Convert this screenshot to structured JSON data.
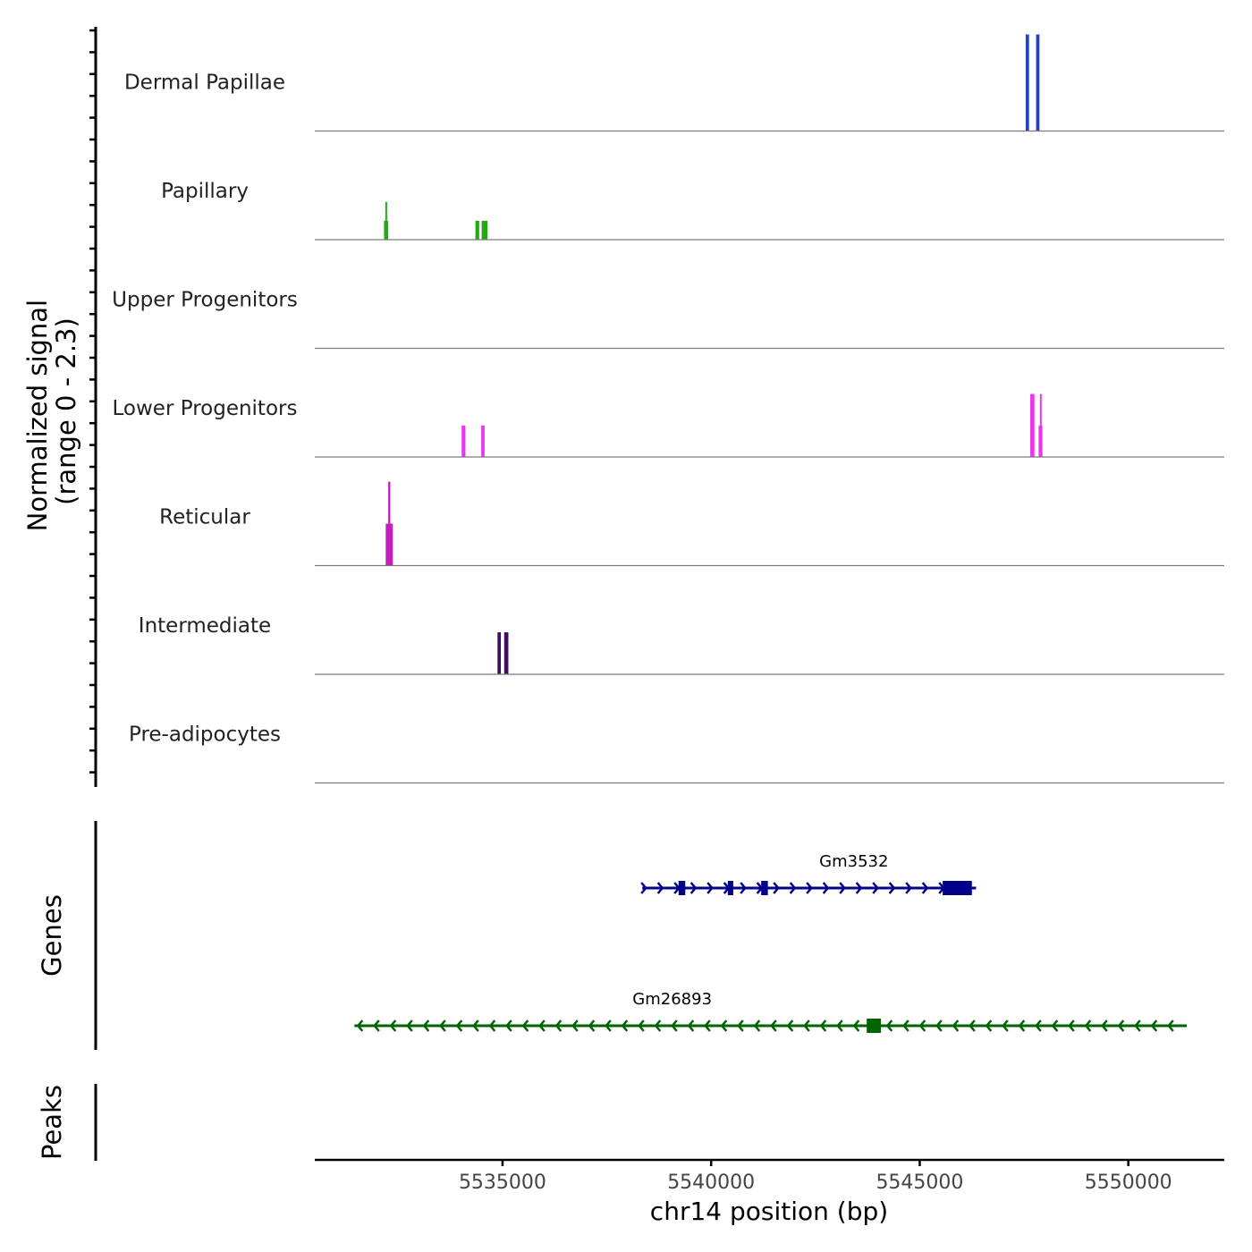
{
  "chart_data": {
    "type": "genome-coverage",
    "y_axis_title": [
      "Normalized signal",
      "(range 0 - 2.3)"
    ],
    "signal_range": [
      0,
      2.3
    ],
    "x_axis": {
      "label": "chr14 position (bp)",
      "range": [
        5530500,
        5552300
      ],
      "ticks": [
        5535000,
        5540000,
        5545000,
        5550000
      ],
      "tick_labels": [
        "5535000",
        "5540000",
        "5545000",
        "5550000"
      ]
    },
    "tracks": [
      {
        "name": "Dermal Papillae",
        "color": "#1f3fd6",
        "peaks": [
          {
            "start": 5547540,
            "end": 5547620,
            "height": 2.3
          },
          {
            "start": 5547790,
            "end": 5547870,
            "height": 2.3
          }
        ]
      },
      {
        "name": "Papillary",
        "color": "#22aa11",
        "peaks": [
          {
            "start": 5532160,
            "end": 5532260,
            "height": 0.45
          },
          {
            "start": 5532190,
            "end": 5532230,
            "height": 0.9
          },
          {
            "start": 5534350,
            "end": 5534440,
            "height": 0.45
          },
          {
            "start": 5534500,
            "end": 5534640,
            "height": 0.45
          }
        ]
      },
      {
        "name": "Upper Progenitors",
        "color": "#777777",
        "peaks": []
      },
      {
        "name": "Lower Progenitors",
        "color": "#ee33ee",
        "peaks": [
          {
            "start": 5534020,
            "end": 5534110,
            "height": 0.75
          },
          {
            "start": 5534490,
            "end": 5534570,
            "height": 0.75
          },
          {
            "start": 5547650,
            "end": 5547750,
            "height": 1.5
          },
          {
            "start": 5547850,
            "end": 5547940,
            "height": 0.75
          },
          {
            "start": 5547880,
            "end": 5547920,
            "height": 1.5
          }
        ]
      },
      {
        "name": "Reticular",
        "color": "#c41fbe",
        "peaks": [
          {
            "start": 5532200,
            "end": 5532370,
            "height": 1.0
          },
          {
            "start": 5532260,
            "end": 5532310,
            "height": 2.0
          }
        ]
      },
      {
        "name": "Intermediate",
        "color": "#3b0f5a",
        "peaks": [
          {
            "start": 5534880,
            "end": 5534960,
            "height": 1.0
          },
          {
            "start": 5535040,
            "end": 5535140,
            "height": 1.0
          }
        ]
      },
      {
        "name": "Pre-adipocytes",
        "color": "#777777",
        "peaks": []
      }
    ],
    "genes_label": "Genes",
    "genes": [
      {
        "name": "Gm3532",
        "strand": "+",
        "color": "#00008b",
        "start": 5538350,
        "end": 5546350,
        "exons": [
          {
            "start": 5539220,
            "end": 5539380
          },
          {
            "start": 5540400,
            "end": 5540530
          },
          {
            "start": 5541200,
            "end": 5541360
          },
          {
            "start": 5545550,
            "end": 5546250
          }
        ]
      },
      {
        "name": "Gm26893",
        "strand": "-",
        "color": "#006400",
        "start": 5531450,
        "end": 5551400,
        "exons": [
          {
            "start": 5543730,
            "end": 5544070
          }
        ]
      }
    ],
    "peaks_label": "Peaks",
    "peak_regions": []
  }
}
